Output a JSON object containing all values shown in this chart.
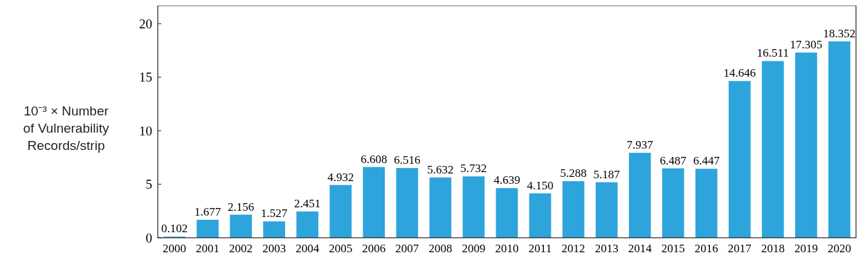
{
  "chart_data": {
    "type": "bar",
    "ylabel": "10⁻³ × Number of Vulnerability Records/strip",
    "categories": [
      "2000",
      "2001",
      "2002",
      "2003",
      "2004",
      "2005",
      "2006",
      "2007",
      "2008",
      "2009",
      "2010",
      "2011",
      "2012",
      "2013",
      "2014",
      "2015",
      "2016",
      "2017",
      "2018",
      "2019",
      "2020"
    ],
    "values": [
      0.102,
      1.677,
      2.156,
      1.527,
      2.451,
      4.932,
      6.608,
      6.516,
      5.632,
      5.732,
      4.639,
      4.15,
      5.288,
      5.187,
      7.937,
      6.487,
      6.447,
      14.646,
      16.511,
      17.305,
      18.352
    ],
    "color": "#2ea4dc",
    "ylim": [
      0,
      21.7
    ],
    "yticks": [
      0,
      5,
      10,
      15,
      20
    ],
    "value_labels": [
      "0.102",
      "1.677",
      "2.156",
      "1.527",
      "2.451",
      "4.932",
      "6.608",
      "6.516",
      "5.632",
      "5.732",
      "4.639",
      "4.150",
      "5.288",
      "5.187",
      "7.937",
      "6.487",
      "6.447",
      "14.646",
      "16.511",
      "17.305",
      "18.352"
    ],
    "grid": false
  }
}
